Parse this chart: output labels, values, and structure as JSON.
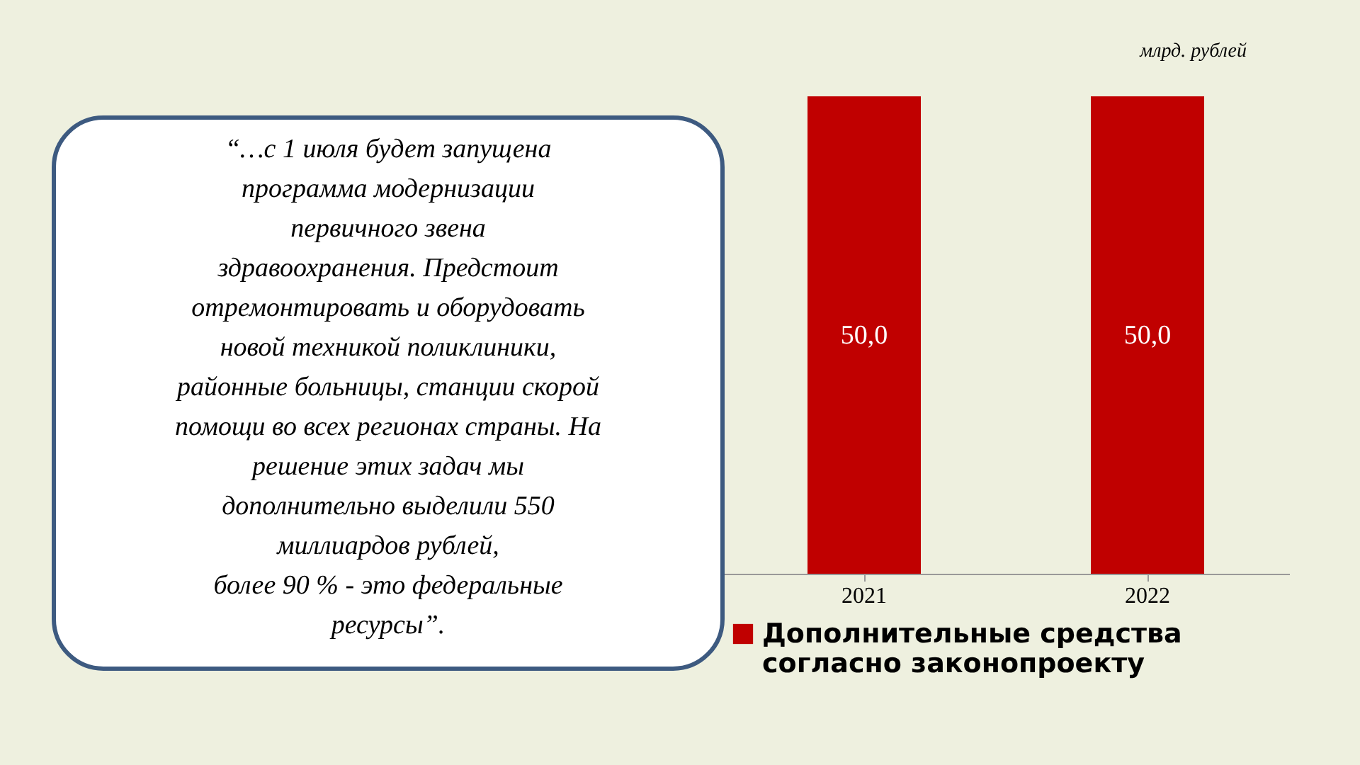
{
  "chart_data": {
    "type": "bar",
    "categories": [
      "2021",
      "2022"
    ],
    "series": [
      {
        "name": "Дополнительные средства согласно законопроекту",
        "color": "#c00000",
        "values": [
          50.0,
          50.0
        ],
        "value_labels": [
          "50,0",
          "50,0"
        ]
      }
    ],
    "annotations": [
      "млрд. рублей",
      "“…с 1 июля будет запущена\nпрограмма модернизации\nпервичного звена\nздравоохранения. Предстоит\nотремонтировать и оборудовать\nновой техникой поликлиники,\nрайонные больницы, станции скорой\nпомощи во всех регионах страны. На\nрешение этих задач мы\nдополнительно выделили 550\nмиллиардов рублей,\nболее 90 % - это федеральные\nресурсы”."
    ],
    "legend": "bottom"
  }
}
